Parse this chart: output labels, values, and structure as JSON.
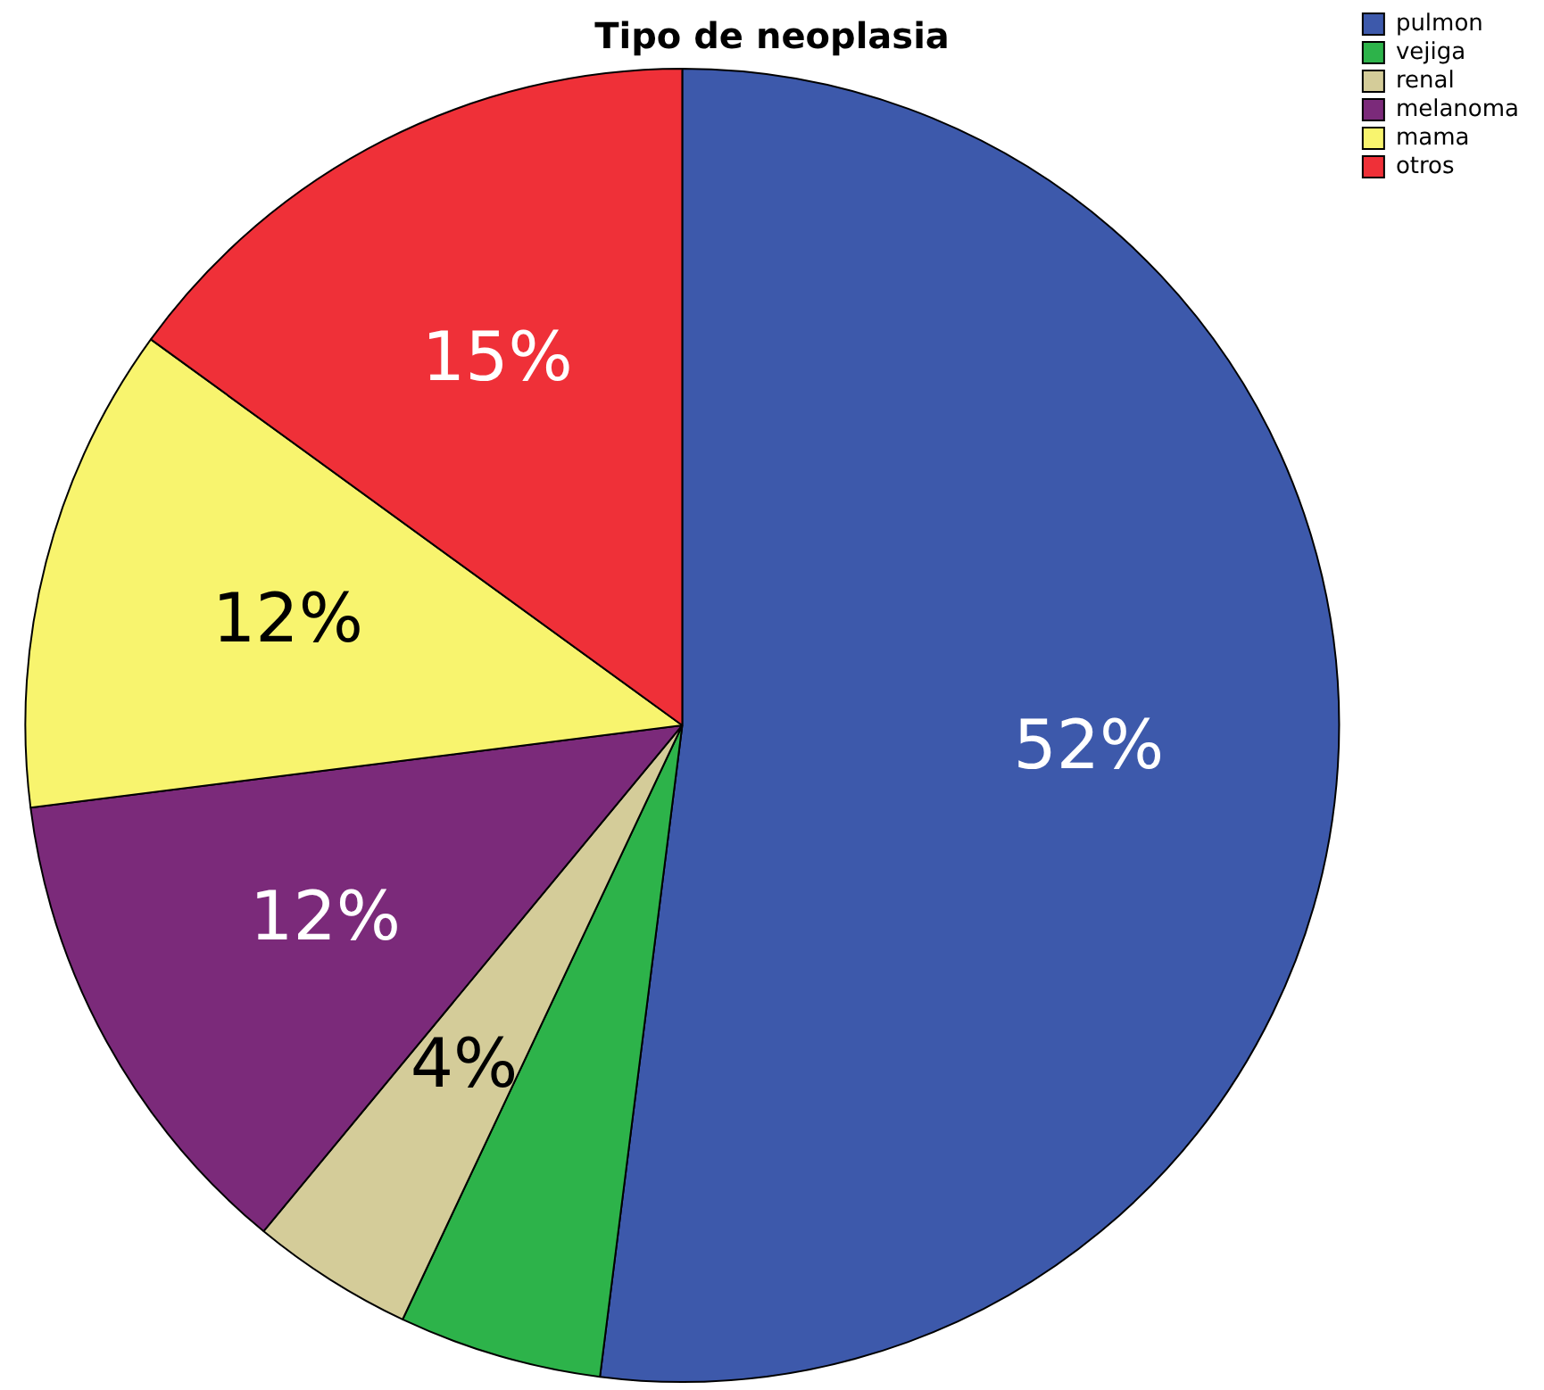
{
  "chart_data": {
    "type": "pie",
    "title": "Tipo de neoplasia",
    "categories": [
      "pulmon",
      "vejiga",
      "renal",
      "melanoma",
      "mama",
      "otros"
    ],
    "values": [
      52,
      5,
      4,
      12,
      12,
      15
    ],
    "value_labels": [
      "52%",
      null,
      "4%",
      "12%",
      "12%",
      "15%"
    ],
    "colors": [
      "#3d59ab",
      "#2db34a",
      "#d4cc99",
      "#7b2a7a",
      "#f8f46e",
      "#ef3038"
    ],
    "legend": "top right"
  }
}
